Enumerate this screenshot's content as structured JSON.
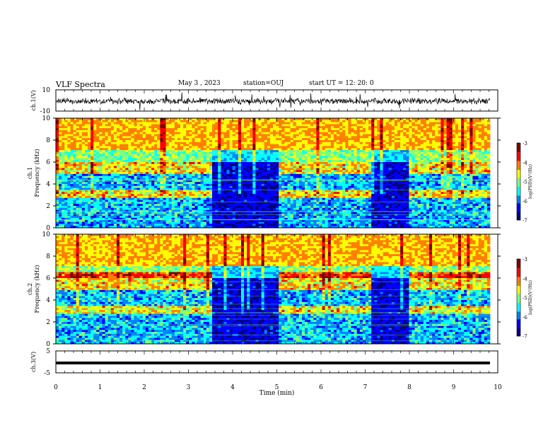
{
  "header": {
    "title": "VLF Spectra",
    "date": "May 3  , 2023",
    "station": "station=OUJ",
    "start": "start  UT  =   12: 20: 0"
  },
  "chart_data": [
    {
      "type": "line",
      "name": "waveform-ch1",
      "ylabel": "ch.1(V)",
      "ylim": [
        -10,
        10
      ],
      "ytick_labels": [
        "10",
        "-10"
      ],
      "xlim": [
        0,
        10
      ]
    },
    {
      "type": "heatmap",
      "name": "spectrogram-ch1",
      "ylabel_line1": "ch.1",
      "ylabel_line2": "Frequency  (kHz)",
      "ylim": [
        0,
        10
      ],
      "yticks": [
        0,
        2,
        4,
        6,
        8,
        10
      ],
      "xlim": [
        0,
        9.8
      ],
      "colorbar": {
        "label": "log(PSD)(V²/Hz)",
        "range": [
          -7,
          -3
        ],
        "ticks": [
          "-3",
          "-4",
          "-5",
          "-6",
          "-7"
        ]
      },
      "quiet_intervals_min": [
        [
          3.55,
          5.0
        ],
        [
          7.1,
          8.0
        ]
      ],
      "emission_bands_khz": [
        [
          2.8,
          3.4
        ],
        [
          5.0,
          6.0
        ]
      ]
    },
    {
      "type": "heatmap",
      "name": "spectrogram-ch2",
      "ylabel_line1": "ch.2",
      "ylabel_line2": "Frequency  (kHz)",
      "ylim": [
        0,
        10
      ],
      "yticks": [
        0,
        2,
        4,
        6,
        8,
        10
      ],
      "xlim": [
        0,
        9.8
      ],
      "colorbar": {
        "label": "log(PSD)(V²/Hz)",
        "range": [
          -7,
          -3
        ],
        "ticks": [
          "-3",
          "-4",
          "-5",
          "-6",
          "-7"
        ]
      },
      "quiet_intervals_min": [
        [
          3.55,
          5.0
        ],
        [
          7.1,
          8.0
        ]
      ],
      "emission_bands_khz": [
        [
          2.8,
          3.4
        ],
        [
          5.0,
          6.5
        ]
      ]
    },
    {
      "type": "line",
      "name": "waveform-ch3",
      "ylabel": "ch.3(V)",
      "ylim": [
        -5,
        5
      ],
      "ytick_labels": [
        "5",
        "-5"
      ],
      "values_constant": -0.5
    }
  ],
  "xaxis": {
    "label": "Time  (min)",
    "ticks": [
      "0",
      "1",
      "2",
      "3",
      "4",
      "5",
      "6",
      "7",
      "8",
      "9",
      "10"
    ]
  },
  "colormap": [
    "#00007f",
    "#0000ff",
    "#007fff",
    "#00ffff",
    "#7fff7f",
    "#ffff00",
    "#ff7f00",
    "#ff0000",
    "#7f0000"
  ]
}
